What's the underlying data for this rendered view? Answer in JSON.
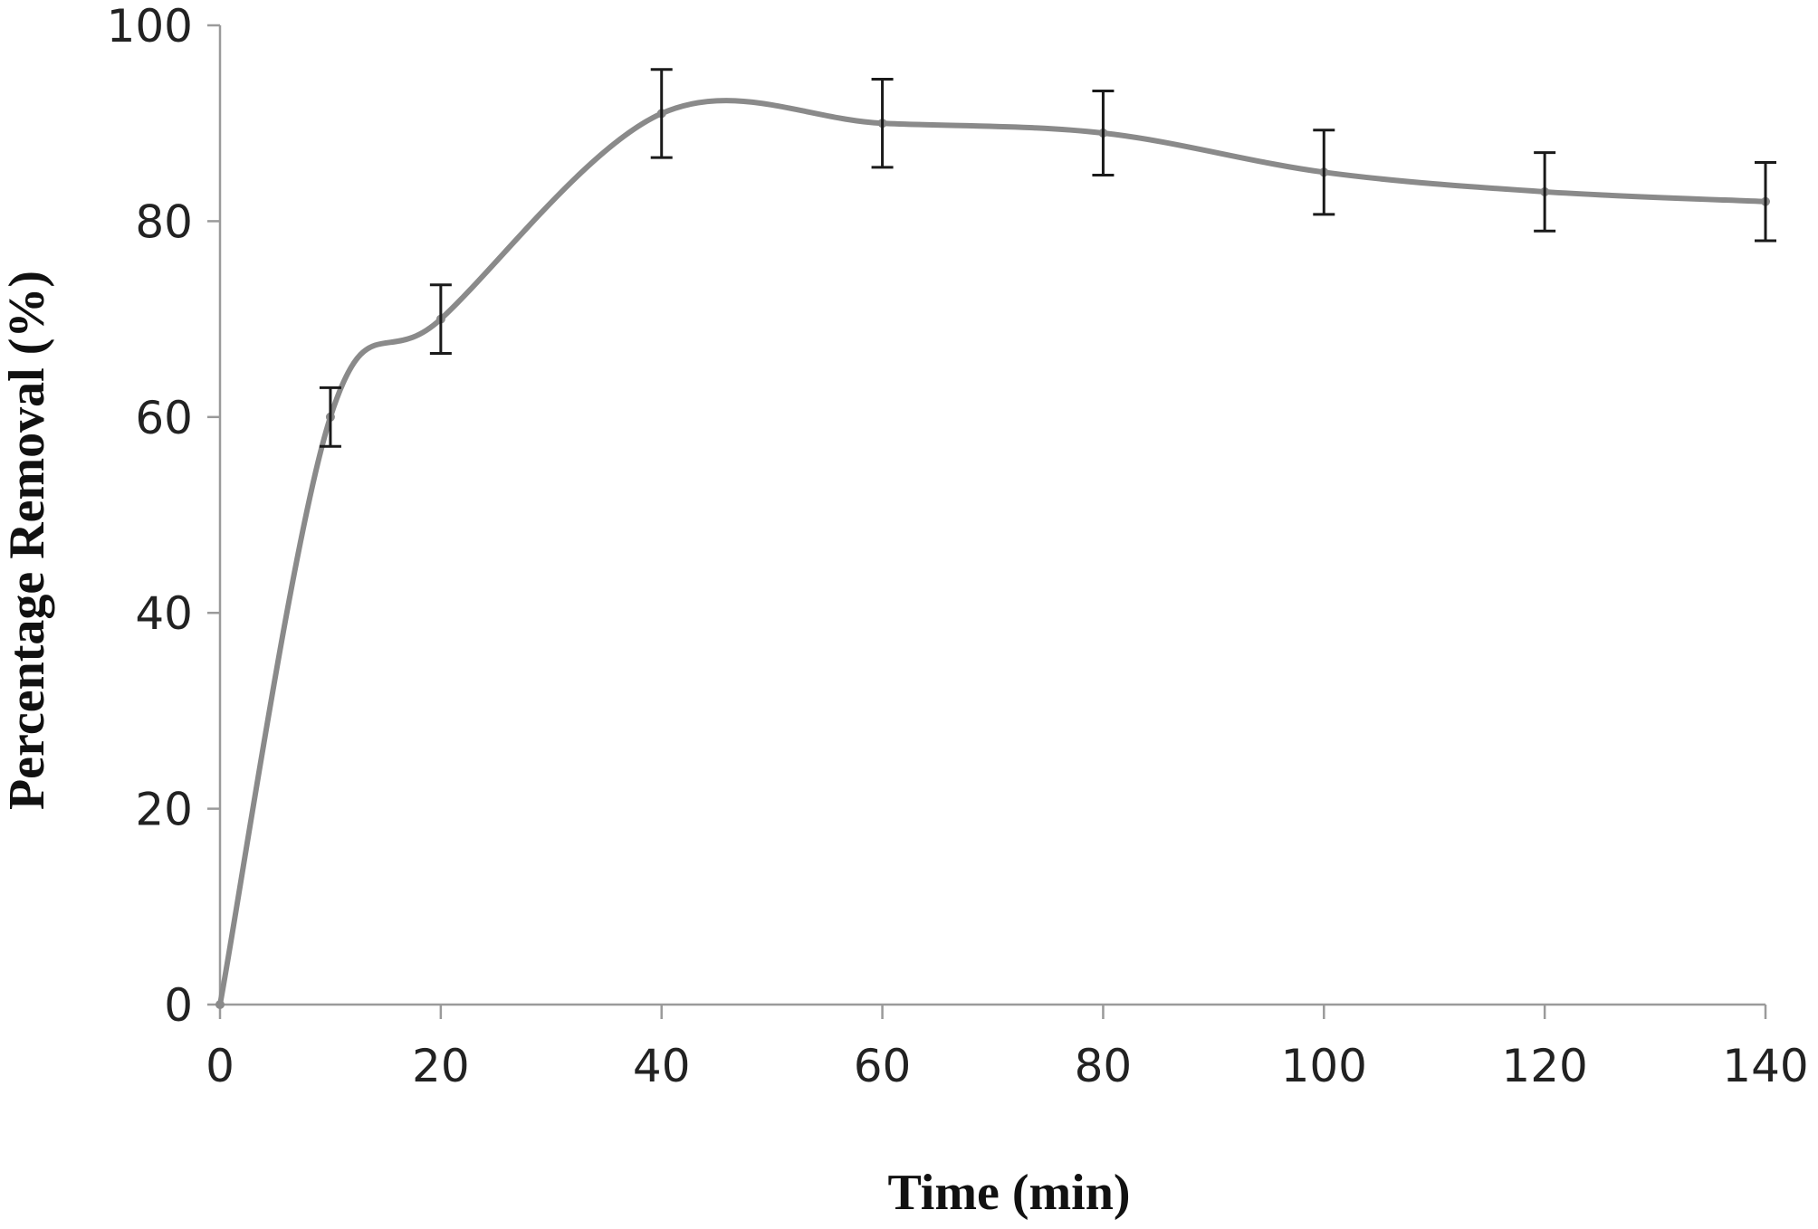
{
  "chart_data": {
    "type": "line",
    "title": "",
    "xlabel": "Time  (min)",
    "ylabel": "Percentage Removal (%)",
    "xlim": [
      0,
      140
    ],
    "ylim": [
      0,
      100
    ],
    "x_ticks": [
      0,
      20,
      40,
      60,
      80,
      100,
      120,
      140
    ],
    "y_ticks": [
      0,
      20,
      40,
      60,
      80,
      100
    ],
    "grid": false,
    "smoothed": true,
    "series": [
      {
        "x": [
          0,
          10,
          20,
          40,
          60,
          80,
          100,
          120,
          140
        ],
        "y": [
          0,
          60,
          70,
          91,
          90,
          89,
          85,
          83,
          82
        ],
        "error": [
          0,
          3,
          3.5,
          4.5,
          4.5,
          4.3,
          4.3,
          4,
          4
        ],
        "color": "#8a8a8a"
      }
    ]
  }
}
